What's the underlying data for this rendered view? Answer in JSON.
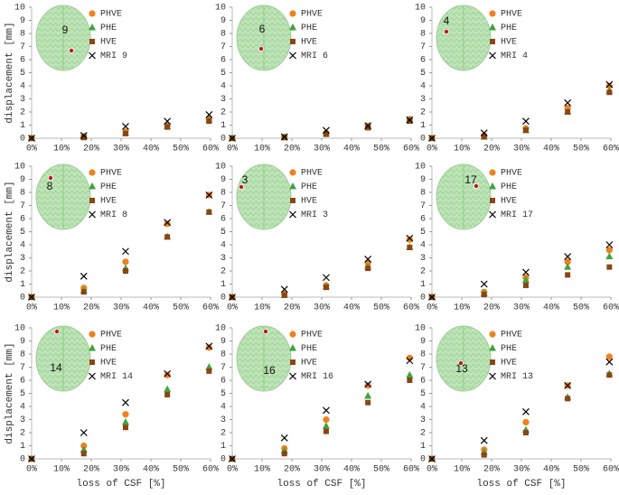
{
  "chart_data": [
    {
      "type": "scatter",
      "annotation": "9",
      "ylabel": "displacement [mm]",
      "x": [
        0,
        17.5,
        31.5,
        45.5,
        59.5
      ],
      "series": [
        {
          "name": "PHVE",
          "color": "#f0801e",
          "marker": "circle",
          "values": [
            0,
            0.15,
            0.5,
            1.0,
            1.5
          ]
        },
        {
          "name": "PHE",
          "color": "#3ea33e",
          "marker": "triangle",
          "values": [
            0,
            0.1,
            0.4,
            0.9,
            1.4
          ]
        },
        {
          "name": "HVE",
          "color": "#8b4513",
          "marker": "square",
          "values": [
            0,
            0.05,
            0.35,
            0.85,
            1.3
          ]
        },
        {
          "name": "MRI 9",
          "color": "#000000",
          "marker": "x",
          "values": [
            0,
            0.2,
            0.9,
            1.3,
            1.8
          ]
        }
      ],
      "xlim": [
        0,
        60
      ],
      "ylim": [
        0,
        10
      ],
      "xticks": [
        {
          "value": 0,
          "label": "0%"
        },
        {
          "value": 10,
          "label": "10%"
        },
        {
          "value": 20,
          "label": "20%"
        },
        {
          "value": 30,
          "label": "30%"
        },
        {
          "value": 40,
          "label": "40%"
        },
        {
          "value": 50,
          "label": "50%"
        },
        {
          "value": 60,
          "label": "60%"
        }
      ],
      "yticks": [
        0,
        1,
        2,
        3,
        4,
        5,
        6,
        7,
        8,
        9,
        10
      ]
    },
    {
      "type": "scatter",
      "annotation": "6",
      "x": [
        0,
        17.5,
        31.5,
        45.5,
        59.5
      ],
      "series": [
        {
          "name": "PHVE",
          "color": "#f0801e",
          "marker": "circle",
          "values": [
            0,
            0.1,
            0.4,
            0.95,
            1.45
          ]
        },
        {
          "name": "PHE",
          "color": "#3ea33e",
          "marker": "triangle",
          "values": [
            0,
            0.05,
            0.35,
            0.85,
            1.35
          ]
        },
        {
          "name": "HVE",
          "color": "#8b4513",
          "marker": "square",
          "values": [
            0,
            0.05,
            0.3,
            0.8,
            1.3
          ]
        },
        {
          "name": "MRI 6",
          "color": "#000000",
          "marker": "x",
          "values": [
            0,
            0.1,
            0.6,
            0.95,
            1.4
          ]
        }
      ],
      "xlim": [
        0,
        60
      ],
      "ylim": [
        0,
        10
      ],
      "xticks": [
        {
          "value": 0,
          "label": "0%"
        },
        {
          "value": 10,
          "label": "10%"
        },
        {
          "value": 20,
          "label": "20%"
        },
        {
          "value": 30,
          "label": "30%"
        },
        {
          "value": 40,
          "label": "40%"
        },
        {
          "value": 50,
          "label": "50%"
        },
        {
          "value": 60,
          "label": "60%"
        }
      ],
      "yticks": [
        0,
        1,
        2,
        3,
        4,
        5,
        6,
        7,
        8,
        9,
        10
      ]
    },
    {
      "type": "scatter",
      "annotation": "4",
      "x": [
        0,
        17.5,
        31.5,
        45.5,
        59.5
      ],
      "series": [
        {
          "name": "PHVE",
          "color": "#f0801e",
          "marker": "circle",
          "values": [
            0,
            0.2,
            0.75,
            2.3,
            4.0
          ]
        },
        {
          "name": "PHE",
          "color": "#3ea33e",
          "marker": "triangle",
          "values": [
            0,
            0.1,
            0.6,
            2.0,
            3.6
          ]
        },
        {
          "name": "HVE",
          "color": "#8b4513",
          "marker": "square",
          "values": [
            0,
            0.1,
            0.6,
            2.0,
            3.5
          ]
        },
        {
          "name": "MRI 4",
          "color": "#000000",
          "marker": "x",
          "values": [
            0,
            0.4,
            1.3,
            2.7,
            4.1
          ]
        }
      ],
      "xlim": [
        0,
        60
      ],
      "ylim": [
        0,
        10
      ],
      "xticks": [
        {
          "value": 0,
          "label": "0%"
        },
        {
          "value": 10,
          "label": "10%"
        },
        {
          "value": 20,
          "label": "20%"
        },
        {
          "value": 30,
          "label": "30%"
        },
        {
          "value": 40,
          "label": "40%"
        },
        {
          "value": 50,
          "label": "50%"
        },
        {
          "value": 60,
          "label": "60%"
        }
      ],
      "yticks": [
        0,
        1,
        2,
        3,
        4,
        5,
        6,
        7,
        8,
        9,
        10
      ]
    },
    {
      "type": "scatter",
      "annotation": "8",
      "ylabel": "displacement [mm]",
      "x": [
        0,
        17.5,
        31.5,
        45.5,
        59.5
      ],
      "series": [
        {
          "name": "PHVE",
          "color": "#f0801e",
          "marker": "circle",
          "values": [
            0,
            0.7,
            2.7,
            5.6,
            7.8
          ]
        },
        {
          "name": "PHE",
          "color": "#3ea33e",
          "marker": "triangle",
          "values": [
            0,
            0.5,
            2.2,
            4.6,
            6.5
          ]
        },
        {
          "name": "HVE",
          "color": "#8b4513",
          "marker": "square",
          "values": [
            0,
            0.4,
            2.0,
            4.6,
            6.5
          ]
        },
        {
          "name": "MRI 8",
          "color": "#000000",
          "marker": "x",
          "values": [
            0,
            1.6,
            3.5,
            5.7,
            7.8
          ]
        }
      ],
      "xlim": [
        0,
        60
      ],
      "ylim": [
        0,
        10
      ],
      "xticks": [
        {
          "value": 0,
          "label": "0%"
        },
        {
          "value": 10,
          "label": "10%"
        },
        {
          "value": 20,
          "label": "20%"
        },
        {
          "value": 30,
          "label": "30%"
        },
        {
          "value": 40,
          "label": "40%"
        },
        {
          "value": 50,
          "label": "50%"
        },
        {
          "value": 60,
          "label": "60%"
        }
      ],
      "yticks": [
        0,
        1,
        2,
        3,
        4,
        5,
        6,
        7,
        8,
        9,
        10
      ]
    },
    {
      "type": "scatter",
      "annotation": "3",
      "x": [
        0,
        17.5,
        31.5,
        45.5,
        59.5
      ],
      "series": [
        {
          "name": "PHVE",
          "color": "#f0801e",
          "marker": "circle",
          "values": [
            0,
            0.25,
            0.9,
            2.6,
            4.4
          ]
        },
        {
          "name": "PHE",
          "color": "#3ea33e",
          "marker": "triangle",
          "values": [
            0,
            0.15,
            0.8,
            2.3,
            3.8
          ]
        },
        {
          "name": "HVE",
          "color": "#8b4513",
          "marker": "square",
          "values": [
            0,
            0.15,
            0.75,
            2.2,
            3.8
          ]
        },
        {
          "name": "MRI 3",
          "color": "#000000",
          "marker": "x",
          "values": [
            0,
            0.6,
            1.5,
            2.9,
            4.5
          ]
        }
      ],
      "xlim": [
        0,
        60
      ],
      "ylim": [
        0,
        10
      ],
      "xticks": [
        {
          "value": 0,
          "label": "0%"
        },
        {
          "value": 10,
          "label": "10%"
        },
        {
          "value": 20,
          "label": "20%"
        },
        {
          "value": 30,
          "label": "30%"
        },
        {
          "value": 40,
          "label": "40%"
        },
        {
          "value": 50,
          "label": "50%"
        },
        {
          "value": 60,
          "label": "60%"
        }
      ],
      "yticks": [
        0,
        1,
        2,
        3,
        4,
        5,
        6,
        7,
        8,
        9,
        10
      ]
    },
    {
      "type": "scatter",
      "annotation": "17",
      "x": [
        0,
        17.5,
        31.5,
        45.5,
        59.5
      ],
      "series": [
        {
          "name": "PHVE",
          "color": "#f0801e",
          "marker": "circle",
          "values": [
            0,
            0.4,
            1.5,
            2.7,
            3.6
          ]
        },
        {
          "name": "PHE",
          "color": "#3ea33e",
          "marker": "triangle",
          "values": [
            0,
            0.3,
            1.3,
            2.3,
            3.1
          ]
        },
        {
          "name": "HVE",
          "color": "#8b4513",
          "marker": "square",
          "values": [
            0,
            0.2,
            0.9,
            1.7,
            2.3
          ]
        },
        {
          "name": "MRI 17",
          "color": "#000000",
          "marker": "x",
          "values": [
            0,
            1.0,
            1.9,
            3.1,
            4.0
          ]
        }
      ],
      "xlim": [
        0,
        60
      ],
      "ylim": [
        0,
        10
      ],
      "xticks": [
        {
          "value": 0,
          "label": "0%"
        },
        {
          "value": 10,
          "label": "10%"
        },
        {
          "value": 20,
          "label": "20%"
        },
        {
          "value": 30,
          "label": "30%"
        },
        {
          "value": 40,
          "label": "40%"
        },
        {
          "value": 50,
          "label": "50%"
        },
        {
          "value": 60,
          "label": "60%"
        }
      ],
      "yticks": [
        0,
        1,
        2,
        3,
        4,
        5,
        6,
        7,
        8,
        9,
        10
      ]
    },
    {
      "type": "scatter",
      "annotation": "14",
      "ylabel": "displacement [mm]",
      "xlabel": "loss of CSF [%]",
      "x": [
        0,
        17.5,
        31.5,
        45.5,
        59.5
      ],
      "series": [
        {
          "name": "PHVE",
          "color": "#f0801e",
          "marker": "circle",
          "values": [
            0,
            1.0,
            3.4,
            6.4,
            8.5
          ]
        },
        {
          "name": "PHE",
          "color": "#3ea33e",
          "marker": "triangle",
          "values": [
            0,
            0.7,
            2.8,
            5.3,
            7.0
          ]
        },
        {
          "name": "HVE",
          "color": "#8b4513",
          "marker": "square",
          "values": [
            0,
            0.4,
            2.4,
            4.9,
            6.7
          ]
        },
        {
          "name": "MRI 14",
          "color": "#000000",
          "marker": "x",
          "values": [
            0,
            2.0,
            4.3,
            6.5,
            8.6
          ]
        }
      ],
      "xlim": [
        0,
        60
      ],
      "ylim": [
        0,
        10
      ],
      "xticks": [
        {
          "value": 0,
          "label": "0%"
        },
        {
          "value": 10,
          "label": "10%"
        },
        {
          "value": 20,
          "label": "20%"
        },
        {
          "value": 30,
          "label": "30%"
        },
        {
          "value": 40,
          "label": "40%"
        },
        {
          "value": 50,
          "label": "50%"
        },
        {
          "value": 60,
          "label": "60%"
        }
      ],
      "yticks": [
        0,
        1,
        2,
        3,
        4,
        5,
        6,
        7,
        8,
        9,
        10
      ]
    },
    {
      "type": "scatter",
      "annotation": "16",
      "xlabel": "loss of CSF [%]",
      "x": [
        0,
        17.5,
        31.5,
        45.5,
        59.5
      ],
      "series": [
        {
          "name": "PHVE",
          "color": "#f0801e",
          "marker": "circle",
          "values": [
            0,
            0.8,
            3.0,
            5.6,
            7.7
          ]
        },
        {
          "name": "PHE",
          "color": "#3ea33e",
          "marker": "triangle",
          "values": [
            0,
            0.6,
            2.5,
            4.8,
            6.4
          ]
        },
        {
          "name": "HVE",
          "color": "#8b4513",
          "marker": "square",
          "values": [
            0,
            0.4,
            2.1,
            4.3,
            6.0
          ]
        },
        {
          "name": "MRI 16",
          "color": "#000000",
          "marker": "x",
          "values": [
            0,
            1.6,
            3.7,
            5.7,
            7.5
          ]
        }
      ],
      "xlim": [
        0,
        60
      ],
      "ylim": [
        0,
        10
      ],
      "xticks": [
        {
          "value": 0,
          "label": "0%"
        },
        {
          "value": 10,
          "label": "10%"
        },
        {
          "value": 20,
          "label": "20%"
        },
        {
          "value": 30,
          "label": "30%"
        },
        {
          "value": 40,
          "label": "40%"
        },
        {
          "value": 50,
          "label": "50%"
        },
        {
          "value": 60,
          "label": "60%"
        }
      ],
      "yticks": [
        0,
        1,
        2,
        3,
        4,
        5,
        6,
        7,
        8,
        9,
        10
      ]
    },
    {
      "type": "scatter",
      "annotation": "13",
      "xlabel": "loss of CSF [%]",
      "x": [
        0,
        17.5,
        31.5,
        45.5,
        59.5
      ],
      "series": [
        {
          "name": "PHVE",
          "color": "#f0801e",
          "marker": "circle",
          "values": [
            0,
            0.7,
            2.8,
            5.6,
            7.8
          ]
        },
        {
          "name": "PHE",
          "color": "#3ea33e",
          "marker": "triangle",
          "values": [
            0,
            0.5,
            2.2,
            4.7,
            6.5
          ]
        },
        {
          "name": "HVE",
          "color": "#8b4513",
          "marker": "square",
          "values": [
            0,
            0.3,
            2.0,
            4.6,
            6.4
          ]
        },
        {
          "name": "MRI 13",
          "color": "#000000",
          "marker": "x",
          "values": [
            0,
            1.4,
            3.6,
            5.6,
            7.4
          ]
        }
      ],
      "xlim": [
        0,
        60
      ],
      "ylim": [
        0,
        10
      ],
      "xticks": [
        {
          "value": 0,
          "label": "0%"
        },
        {
          "value": 10,
          "label": "10%"
        },
        {
          "value": 20,
          "label": "20%"
        },
        {
          "value": 30,
          "label": "30%"
        },
        {
          "value": 40,
          "label": "40%"
        },
        {
          "value": 50,
          "label": "50%"
        },
        {
          "value": 60,
          "label": "60%"
        }
      ],
      "yticks": [
        0,
        1,
        2,
        3,
        4,
        5,
        6,
        7,
        8,
        9,
        10
      ]
    }
  ]
}
